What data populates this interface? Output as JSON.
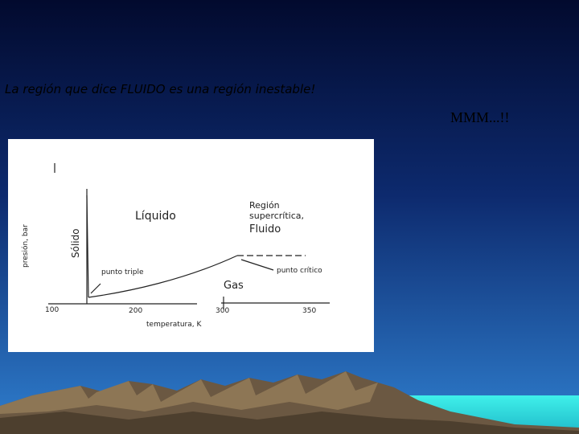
{
  "header": {
    "title": "La región que dice FLUIDO es una región inestable!",
    "subtitle": "MMM...!!"
  },
  "diagram": {
    "liquid": "Líquido",
    "solid": "Sólido",
    "gas": "Gas",
    "supercritical": [
      "Región",
      "supercrítica,",
      "Fluido"
    ],
    "triple_point": "punto triple",
    "critical_point": "punto crítico",
    "y_axis": "presión, bar",
    "x_axis": "temperatura, K",
    "xticks": [
      "100",
      "200",
      "300",
      "350"
    ]
  }
}
